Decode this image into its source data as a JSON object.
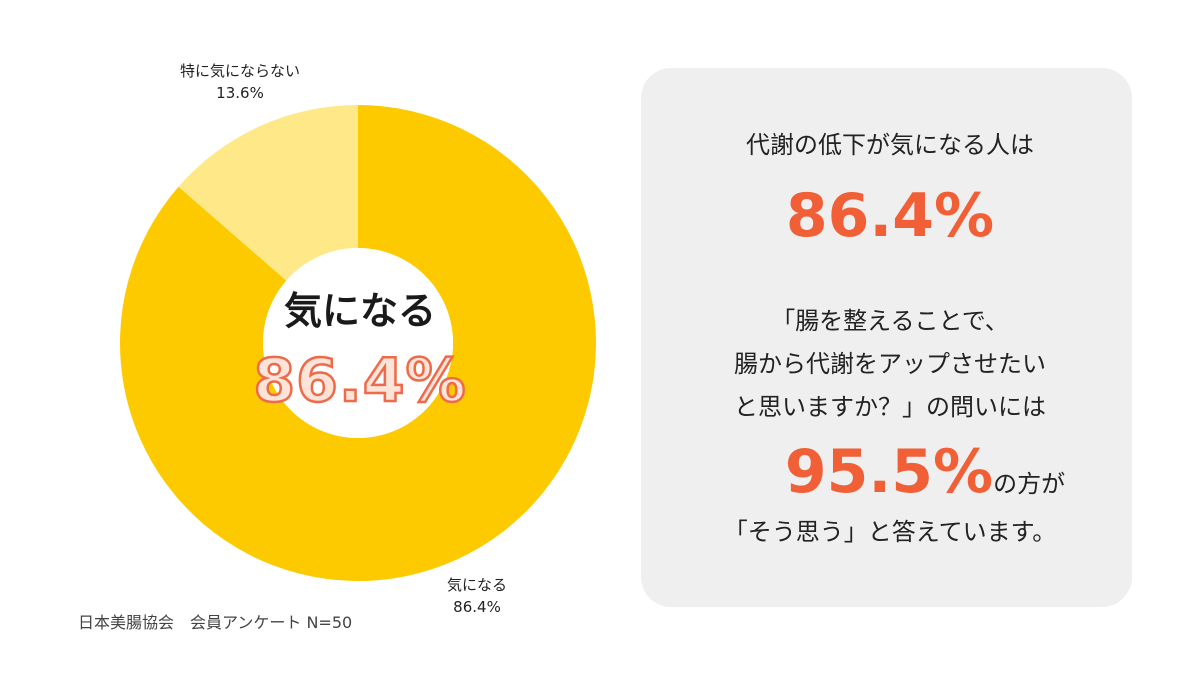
{
  "chart_data": {
    "type": "pie",
    "style": "donut",
    "categories": [
      "気になる",
      "特に気にならない"
    ],
    "values": [
      86.4,
      13.6
    ],
    "value_labels": [
      "86.4%",
      "13.6%"
    ],
    "colors": [
      "#fdca00",
      "#fee888"
    ],
    "center_title": "気になる",
    "center_value": "86.4%"
  },
  "source_note": "日本美腸協会　会員アンケート N=50",
  "panel": {
    "heading": "代謝の低下が気になる人は",
    "big_value": "86.4%",
    "question_lines": [
      "「腸を整えることで、",
      "腸から代謝をアップさせたい",
      "と思いますか？」の問いには"
    ],
    "answer_value": "95.5%",
    "answer_suffix": "の方が",
    "closing": "「そう思う」と答えています。"
  },
  "colors": {
    "accent": "#f05f36",
    "panel_bg": "#efefef"
  }
}
